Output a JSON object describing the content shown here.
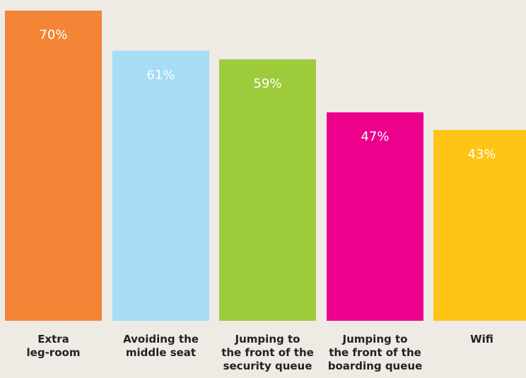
{
  "chart_data": {
    "type": "bar",
    "categories": [
      [
        "Extra",
        "leg-room"
      ],
      [
        "Avoiding the",
        "middle seat"
      ],
      [
        "Jumping to",
        "the front of the",
        "security queue"
      ],
      [
        "Jumping to",
        "the front of the",
        "boarding queue"
      ],
      [
        "Wifi"
      ]
    ],
    "values": [
      70,
      61,
      59,
      47,
      43
    ],
    "value_labels": [
      "70%",
      "61%",
      "59%",
      "47%",
      "43%"
    ],
    "colors": [
      "#f58536",
      "#a6dcf5",
      "#9dcb3c",
      "#ec008c",
      "#fec416"
    ],
    "ylim": [
      0,
      72
    ],
    "grid": false,
    "legend": "none",
    "background": "#eeeae4"
  }
}
